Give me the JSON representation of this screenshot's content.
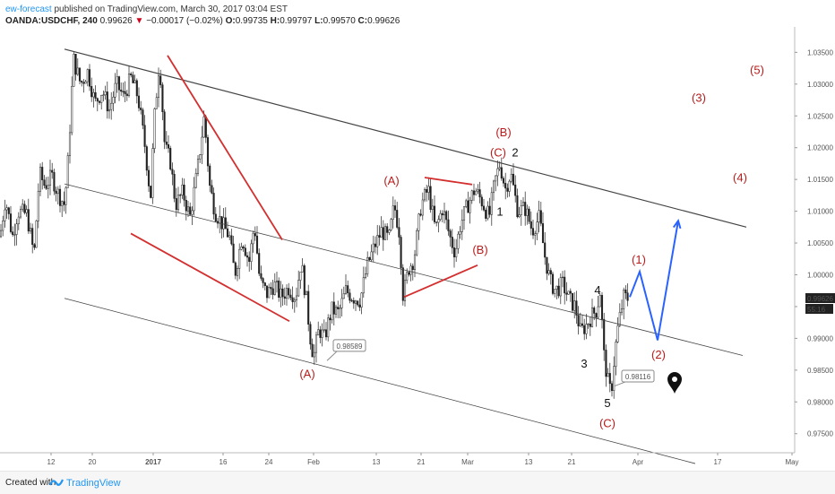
{
  "header": {
    "author": "ew-forecast",
    "published": "published on TradingView.com, March 30, 2017 03:04 EST",
    "symbol": "OANDA:USDCHF, 240",
    "last": "0.99626",
    "change": "−0.00017 (−0.02%)",
    "open_label": "O:",
    "open": "0.99735",
    "high_label": "H:",
    "high": "0.99797",
    "low_label": "L:",
    "low": "0.99570",
    "close_label": "C:",
    "close": "0.99626"
  },
  "footer": {
    "created_with": "Created with",
    "brand": "TradingView"
  },
  "colors": {
    "red": "#d32f2f",
    "wave_red": "#b71c1c",
    "blue": "#2962ff",
    "candle": "#222222",
    "channel": "#444444"
  },
  "chart_data": {
    "type": "candlestick",
    "symbol": "USDCHF",
    "timeframe": "240",
    "x_labels": [
      "12",
      "20",
      "2017",
      "16",
      "24",
      "Feb",
      "13",
      "21",
      "Mar",
      "13",
      "21",
      "Apr",
      "17",
      "May"
    ],
    "y_ticks": [
      "1.03500",
      "1.03000",
      "1.02500",
      "1.02000",
      "1.01500",
      "1.01000",
      "1.00500",
      "1.00000",
      "0.99500",
      "0.99000",
      "0.98500",
      "0.98000",
      "0.97500"
    ],
    "ylim": [
      0.972,
      1.039
    ],
    "last_price_label": "0.99626",
    "countdown_label": "55:16",
    "price_path": [
      [
        0,
        1.006
      ],
      [
        6,
        1.012
      ],
      [
        14,
        1.006
      ],
      [
        20,
        1.01
      ],
      [
        30,
        1.0095
      ],
      [
        38,
        1.003
      ],
      [
        44,
        1.016
      ],
      [
        50,
        1.014
      ],
      [
        58,
        1.0155
      ],
      [
        64,
        1.013
      ],
      [
        72,
        1.011
      ],
      [
        76,
        1.018
      ],
      [
        82,
        1.034
      ],
      [
        90,
        1.03
      ],
      [
        98,
        1.032
      ],
      [
        106,
        1.027
      ],
      [
        114,
        1.029
      ],
      [
        122,
        1.026
      ],
      [
        130,
        1.03
      ],
      [
        138,
        1.028
      ],
      [
        146,
        1.031
      ],
      [
        154,
        1.028
      ],
      [
        162,
        1.02
      ],
      [
        168,
        1.012
      ],
      [
        172,
        1.024
      ],
      [
        178,
        1.034
      ],
      [
        184,
        1.02
      ],
      [
        190,
        1.018
      ],
      [
        196,
        1.011
      ],
      [
        204,
        1.013
      ],
      [
        212,
        1.009
      ],
      [
        220,
        1.016
      ],
      [
        228,
        1.025
      ],
      [
        234,
        1.014
      ],
      [
        240,
        1.01
      ],
      [
        248,
        1.008
      ],
      [
        256,
        1.006
      ],
      [
        262,
        1.0
      ],
      [
        270,
        1.006
      ],
      [
        278,
        1.002
      ],
      [
        284,
        1.008
      ],
      [
        290,
        0.999
      ],
      [
        298,
        0.997
      ],
      [
        306,
        0.9985
      ],
      [
        314,
        0.9965
      ],
      [
        322,
        0.998
      ],
      [
        330,
        0.9965
      ],
      [
        336,
        1.002
      ],
      [
        342,
        0.996
      ],
      [
        346,
        0.9905
      ],
      [
        350,
        0.987
      ],
      [
        356,
        0.9915
      ],
      [
        362,
        0.99
      ],
      [
        370,
        0.9945
      ],
      [
        378,
        0.994
      ],
      [
        386,
        0.9975
      ],
      [
        394,
        0.9965
      ],
      [
        402,
        0.996
      ],
      [
        410,
        1.0015
      ],
      [
        418,
        1.0045
      ],
      [
        426,
        1.007
      ],
      [
        434,
        1.0055
      ],
      [
        440,
        1.011
      ],
      [
        446,
        1.0065
      ],
      [
        450,
        0.9965
      ],
      [
        456,
        1.001
      ],
      [
        462,
        1.0025
      ],
      [
        470,
        1.011
      ],
      [
        478,
        1.0135
      ],
      [
        486,
        1.007
      ],
      [
        494,
        1.0105
      ],
      [
        502,
        1.006
      ],
      [
        508,
        1.0035
      ],
      [
        514,
        1.008
      ],
      [
        522,
        1.011
      ],
      [
        530,
        1.0135
      ],
      [
        538,
        1.0115
      ],
      [
        546,
        1.009
      ],
      [
        552,
        1.0145
      ],
      [
        558,
        1.0175
      ],
      [
        564,
        1.0135
      ],
      [
        570,
        1.016
      ],
      [
        578,
        1.01
      ],
      [
        586,
        1.0105
      ],
      [
        594,
        1.007
      ],
      [
        602,
        1.009
      ],
      [
        608,
        1.003
      ],
      [
        614,
        0.999
      ],
      [
        620,
        0.9975
      ],
      [
        628,
        0.9985
      ],
      [
        636,
        0.996
      ],
      [
        642,
        0.995
      ],
      [
        648,
        0.991
      ],
      [
        654,
        0.992
      ],
      [
        660,
        0.9935
      ],
      [
        666,
        0.9945
      ],
      [
        670,
        0.9975
      ],
      [
        674,
        0.9875
      ],
      [
        678,
        0.9835
      ],
      [
        682,
        0.9812
      ],
      [
        686,
        0.9875
      ],
      [
        690,
        0.992
      ],
      [
        696,
        0.9965
      ],
      [
        701,
        0.9963
      ]
    ],
    "channel": {
      "upper": [
        [
          72,
          1.0355
        ],
        [
          833,
          1.0075
        ]
      ],
      "middle": [
        [
          72,
          1.0143
        ],
        [
          829,
          0.9873
        ]
      ],
      "lower": [
        [
          72,
          0.9963
        ],
        [
          776,
          0.9703
        ]
      ]
    },
    "red_lines": [
      [
        [
          187,
          1.0345
        ],
        [
          315,
          1.0055
        ]
      ],
      [
        [
          146,
          1.0065
        ],
        [
          323,
          0.9927
        ]
      ],
      [
        [
          474,
          1.0153
        ],
        [
          527,
          1.0142
        ]
      ],
      [
        [
          451,
          0.9965
        ],
        [
          533,
          1.0015
        ]
      ]
    ],
    "projection": [
      [
        703,
        0.9965
      ],
      [
        714,
        1.0005
      ],
      [
        734,
        0.9897
      ],
      [
        757,
        1.0085
      ]
    ],
    "price_callouts": [
      {
        "text": "0.98589",
        "at": [
          365,
          0.9865
        ],
        "box": [
          372,
          0.9895
        ]
      },
      {
        "text": "0.98116",
        "at": [
          686,
          0.9825
        ],
        "box": [
          694,
          0.9847
        ]
      }
    ],
    "wave_labels": [
      {
        "text": "(5)",
        "at": [
          845,
          1.0323
        ],
        "color": "wave_red"
      },
      {
        "text": "(3)",
        "at": [
          780,
          1.0279
        ],
        "color": "wave_red"
      },
      {
        "text": "(4)",
        "at": [
          826,
          1.0154
        ],
        "color": "wave_red"
      },
      {
        "text": "(B)",
        "at": [
          562,
          1.0225
        ],
        "color": "wave_red"
      },
      {
        "text": "(C)",
        "at": [
          556,
          1.0193
        ],
        "color": "wave_red"
      },
      {
        "text": "2",
        "at": [
          575,
          1.0193
        ],
        "color": "black"
      },
      {
        "text": "1",
        "at": [
          558,
          1.01
        ],
        "color": "black"
      },
      {
        "text": "(A)",
        "at": [
          437,
          1.0149
        ],
        "color": "wave_red"
      },
      {
        "text": "(B)",
        "at": [
          536,
          1.004
        ],
        "color": "wave_red"
      },
      {
        "text": "(1)",
        "at": [
          713,
          1.0025
        ],
        "color": "wave_red"
      },
      {
        "text": "4",
        "at": [
          667,
          0.9977
        ],
        "color": "black"
      },
      {
        "text": "(A)",
        "at": [
          343,
          0.9845
        ],
        "color": "wave_red"
      },
      {
        "text": "3",
        "at": [
          652,
          0.9861
        ],
        "color": "black"
      },
      {
        "text": "(2)",
        "at": [
          735,
          0.9875
        ],
        "color": "wave_red"
      },
      {
        "text": "5",
        "at": [
          678,
          0.9799
        ],
        "color": "black"
      },
      {
        "text": "(C)",
        "at": [
          678,
          0.9767
        ],
        "color": "wave_red"
      }
    ],
    "marker": {
      "at": [
        753,
        0.983
      ],
      "icon": "location-pin-icon"
    }
  }
}
